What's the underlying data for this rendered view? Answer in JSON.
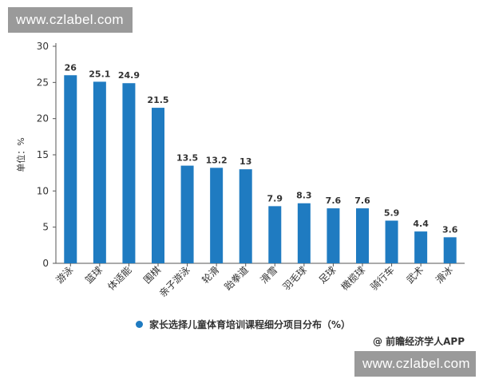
{
  "watermark": {
    "top": "www.czlabel.com",
    "bottom": "www.czlabel.com"
  },
  "legend": {
    "label": "家长选择儿童体育培训课程细分项目分布（%）",
    "color": "#1f7bc1"
  },
  "source": "@ 前瞻经济学人APP",
  "chart_data": {
    "type": "bar",
    "categories": [
      "游泳",
      "篮球",
      "体适能",
      "围棋",
      "亲子游泳",
      "轮滑",
      "跆拳道",
      "滑雪",
      "羽毛球",
      "足球",
      "橄榄球",
      "骑行车",
      "武术",
      "滑冰"
    ],
    "values": [
      26,
      25.1,
      24.9,
      21.5,
      13.5,
      13.2,
      13,
      7.9,
      8.3,
      7.6,
      7.6,
      5.9,
      4.4,
      3.6
    ],
    "value_labels": [
      "26",
      "25.1",
      "24.9",
      "21.5",
      "13.5",
      "13.2",
      "13",
      "7.9",
      "8.3",
      "7.6",
      "7.6",
      "5.9",
      "4.4",
      "3.6"
    ],
    "series": [
      {
        "name": "家长选择儿童体育培训课程细分项目分布（%）",
        "color": "#1f7bc1"
      }
    ],
    "ylabel": "单位：%",
    "ylim": [
      0,
      30
    ],
    "yticks": [
      0,
      5,
      10,
      15,
      20,
      25,
      30
    ],
    "grid": false,
    "legend_position": "bottom"
  }
}
